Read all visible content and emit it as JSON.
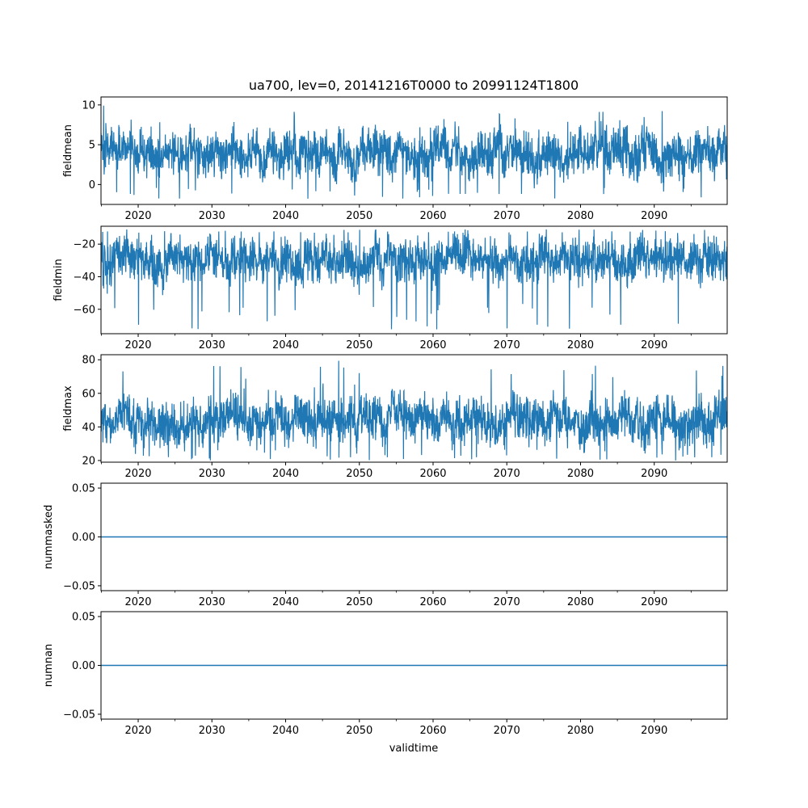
{
  "chart_data": {
    "type": "line",
    "title": "ua700, lev=0, 20141216T0000 to 20991124T1800",
    "xlabel": "validtime",
    "xlim": [
      "2014-12-16",
      "2099-11-24"
    ],
    "x_ticks": [
      "2020",
      "2030",
      "2040",
      "2050",
      "2060",
      "2070",
      "2080",
      "2090"
    ],
    "grid": false,
    "colors": {
      "series": "#1f77b4",
      "axes": "#000000",
      "background": "#ffffff"
    },
    "panels": [
      {
        "ylabel": "fieldmean",
        "ylim": [
          -2.5,
          11
        ],
        "yticks": [
          0,
          5,
          10
        ],
        "ytick_labels": [
          "0",
          "5",
          "10"
        ],
        "observed_min": -1.8,
        "observed_max": 10.3,
        "typical_band": [
          0.5,
          7.5
        ],
        "center": 3.2,
        "noise_amplitude": 4.0
      },
      {
        "ylabel": "fieldmin",
        "ylim": [
          -75,
          -9
        ],
        "yticks": [
          -20,
          -40,
          -60
        ],
        "ytick_labels": [
          "−20",
          "−40",
          "−60"
        ],
        "observed_min": -73,
        "observed_max": -11,
        "typical_band": [
          -45,
          -13
        ],
        "center": -28,
        "noise_amplitude": 16.0
      },
      {
        "ylabel": "fieldmax",
        "ylim": [
          19,
          83
        ],
        "yticks": [
          20,
          40,
          60,
          80
        ],
        "ytick_labels": [
          "20",
          "40",
          "60",
          "80"
        ],
        "observed_min": 20,
        "observed_max": 80,
        "typical_band": [
          27,
          60
        ],
        "center": 42,
        "noise_amplitude": 16.0
      },
      {
        "ylabel": "nummasked",
        "ylim": [
          -0.055,
          0.055
        ],
        "yticks": [
          0.05,
          0,
          -0.05
        ],
        "ytick_labels": [
          "0.05",
          "0.00",
          "−0.05"
        ],
        "constant_value": 0.0
      },
      {
        "ylabel": "numnan",
        "ylim": [
          -0.055,
          0.055
        ],
        "yticks": [
          0.05,
          0,
          -0.05
        ],
        "ytick_labels": [
          "0.05",
          "0.00",
          "−0.05"
        ],
        "constant_value": 0.0
      }
    ]
  }
}
